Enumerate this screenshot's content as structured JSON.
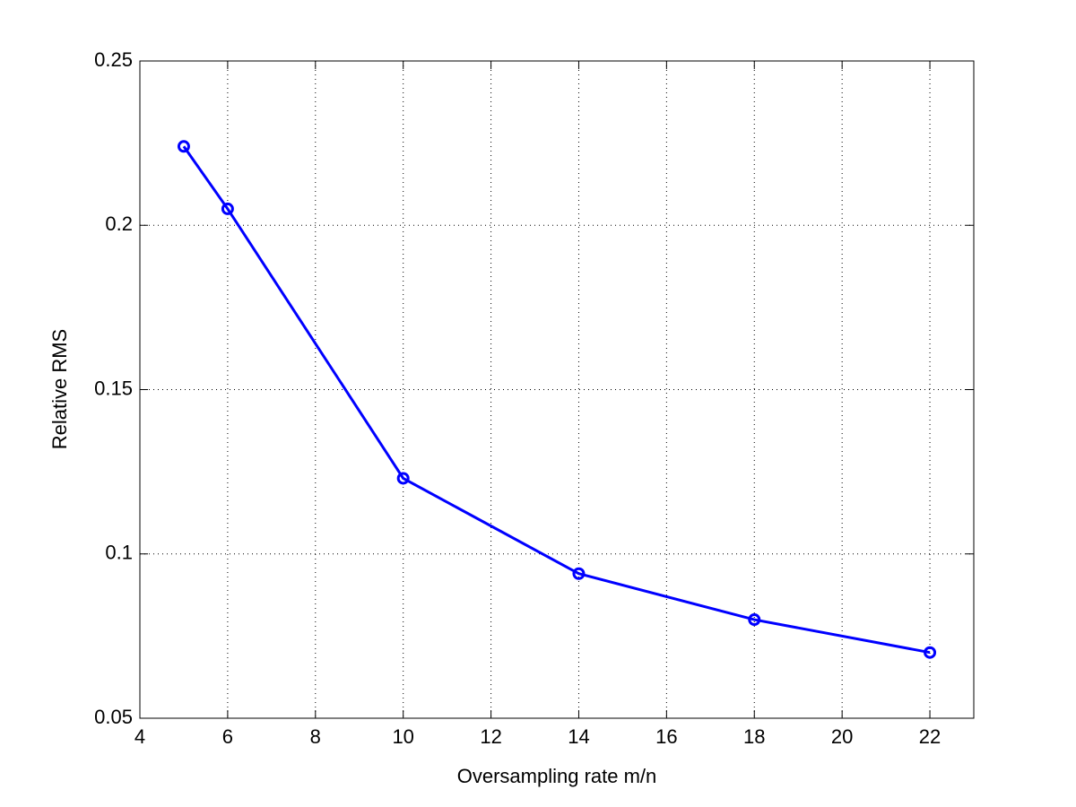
{
  "chart_data": {
    "type": "line",
    "x_label": "Oversampling rate m/n",
    "y_label": "Relative RMS",
    "x": [
      5,
      6,
      10,
      14,
      18,
      22
    ],
    "series": [
      {
        "color": "#0000ff",
        "values": [
          0.224,
          0.205,
          0.123,
          0.094,
          0.08,
          0.07
        ]
      }
    ],
    "xlim": [
      4,
      23
    ],
    "ylim": [
      0.05,
      0.25
    ],
    "xticks": [
      4,
      6,
      8,
      10,
      12,
      14,
      16,
      18,
      20,
      22
    ],
    "yticks": [
      0.05,
      0.1,
      0.15,
      0.2,
      0.25
    ],
    "grid": true,
    "marker": "circle"
  }
}
